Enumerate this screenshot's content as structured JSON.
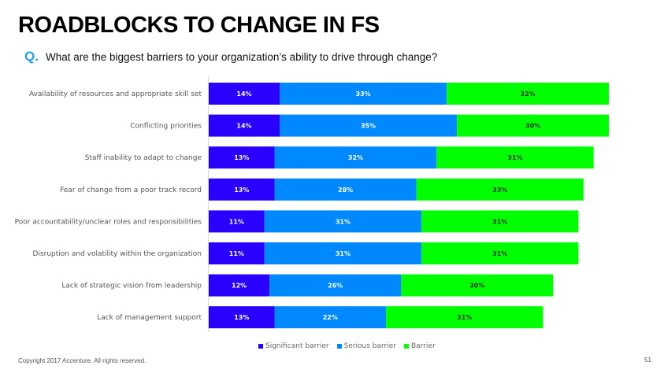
{
  "title": "ROADBLOCKS TO CHANGE IN FS",
  "q_marker": "Q.",
  "question": "What are the biggest barriers to your organization’s ability to drive through change?",
  "copyright": "Copyright 2017 Accenture. All rights reserved.",
  "page_number": "51",
  "chart_data": {
    "type": "bar",
    "orientation": "horizontal-stacked",
    "categories": [
      "Availability of resources and appropriate skill set",
      "Conflicting priorities",
      "Staff inability to adapt to change",
      "Fear of change from a poor track record",
      "Poor accountability/unclear roles and responsibilities",
      "Disruption and volatility within the organization",
      "Lack of strategic vision from leadership",
      "Lack of management support"
    ],
    "series": [
      {
        "name": "Significant barrier",
        "color": "#2a00ff",
        "label_color": "#ffffff",
        "values": [
          14,
          14,
          13,
          13,
          11,
          11,
          12,
          13
        ]
      },
      {
        "name": "Serious barrier",
        "color": "#0088ff",
        "label_color": "#ffffff",
        "values": [
          33,
          35,
          32,
          28,
          31,
          31,
          26,
          22
        ]
      },
      {
        "name": "Barrier",
        "color": "#00ff00",
        "label_color": "#333333",
        "values": [
          32,
          30,
          31,
          33,
          31,
          31,
          30,
          31
        ]
      }
    ],
    "unit": "%",
    "legend": "bottom",
    "grid": false
  }
}
